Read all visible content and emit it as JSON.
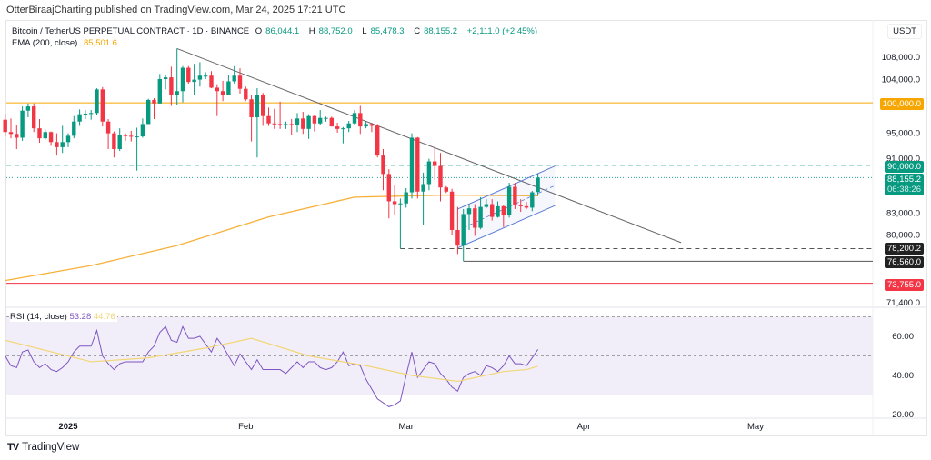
{
  "header": {
    "published": "OtterBiraajCharting published on TradingView.com, Mar 24, 2025 17:21 UTC",
    "symbol": "Bitcoin / TetherUS PERPETUAL CONTRACT · 1D · BINANCE",
    "open_label": "O",
    "open": "86,044.1",
    "high_label": "H",
    "high": "88,752.0",
    "low_label": "L",
    "low": "85,478.3",
    "close_label": "C",
    "close": "88,155.2",
    "change": "+2,111.0 (+2.45%)",
    "ema_label": "EMA (200, close)",
    "ema_value": "85,501.6"
  },
  "currency": "USDT",
  "colors": {
    "up": "#089981",
    "down": "#f23645",
    "ema": "#f7b13a",
    "rsi": "#7e57c2",
    "rsi_ma": "#f2d675",
    "channel": "#5b7bd5",
    "trendline": "#666666",
    "level_100k": "#f7a600",
    "level_73k": "#f23645"
  },
  "price_labels": {
    "l100k": "100,000.0",
    "l90k": "90,000.0",
    "last": "88,155.2",
    "countdown": "06:38:26",
    "l78k": "78,200.2",
    "l76k": "76,560.0",
    "l73k": "73,755.0"
  },
  "rsi_legend": {
    "label": "RSI (14, close)",
    "value": "53.28",
    "ma_value": "44.76"
  },
  "footer": {
    "logo": "TV",
    "brand": "TradingView"
  },
  "chart_data": [
    {
      "type": "candlestick",
      "scale": "log",
      "ylim": [
        71400,
        110000
      ],
      "y_ticks": [
        "108,000.0",
        "104,000.0",
        "95,000.0",
        "91,000.0",
        "83,000.0",
        "80,000.0",
        "71,400.0"
      ],
      "y_tick_values": [
        108000,
        104000,
        95000,
        91000,
        83000,
        80000,
        71400
      ],
      "x_ticks": [
        {
          "label": "2025",
          "date": "2025-01-01"
        },
        {
          "label": "Feb",
          "date": "2025-02-01"
        },
        {
          "label": "Mar",
          "date": "2025-03-01"
        },
        {
          "label": "Apr",
          "date": "2025-04-01"
        },
        {
          "label": "May",
          "date": "2025-05-01"
        }
      ],
      "start_date": "2024-12-21",
      "ohlc_columns": [
        "open",
        "high",
        "low",
        "close"
      ],
      "ohlc": [
        [
          97200,
          98200,
          94500,
          95200
        ],
        [
          95200,
          97400,
          94200,
          94900
        ],
        [
          94900,
          96400,
          92500,
          94300
        ],
        [
          94300,
          99400,
          93800,
          98700
        ],
        [
          98700,
          99900,
          97600,
          99400
        ],
        [
          99400,
          99900,
          95200,
          95800
        ],
        [
          95800,
          97300,
          93500,
          94200
        ],
        [
          94200,
          95600,
          94000,
          95200
        ],
        [
          95200,
          95300,
          93000,
          93600
        ],
        [
          93600,
          95000,
          91500,
          92800
        ],
        [
          92800,
          96200,
          91900,
          93600
        ],
        [
          93600,
          95000,
          92800,
          94600
        ],
        [
          94600,
          97800,
          94200,
          96900
        ],
        [
          96900,
          98900,
          96200,
          98100
        ],
        [
          98100,
          98800,
          97300,
          98200
        ],
        [
          98200,
          98800,
          97200,
          98300
        ],
        [
          98300,
          102500,
          97900,
          102300
        ],
        [
          102300,
          102700,
          96100,
          96900
        ],
        [
          96900,
          97300,
          92500,
          95000
        ],
        [
          95000,
          95300,
          91200,
          92500
        ],
        [
          92500,
          95800,
          92200,
          94700
        ],
        [
          94700,
          95000,
          93800,
          94600
        ],
        [
          94600,
          95400,
          93700,
          94500
        ],
        [
          94500,
          95900,
          89200,
          94500
        ],
        [
          94500,
          97400,
          94300,
          96500
        ],
        [
          96500,
          100700,
          96500,
          100500
        ],
        [
          100500,
          100800,
          97300,
          99900
        ],
        [
          99900,
          105000,
          99900,
          104100
        ],
        [
          104100,
          104900,
          102300,
          104400
        ],
        [
          104400,
          106300,
          99500,
          101300
        ],
        [
          101300,
          109600,
          99600,
          102000
        ],
        [
          102000,
          106400,
          100100,
          106100
        ],
        [
          106100,
          106400,
          103300,
          103600
        ],
        [
          103600,
          106800,
          101300,
          104000
        ],
        [
          104000,
          107100,
          102800,
          104700
        ],
        [
          104700,
          105300,
          104100,
          104700
        ],
        [
          104700,
          105500,
          102500,
          102600
        ],
        [
          102600,
          103200,
          97800,
          102000
        ],
        [
          102000,
          103800,
          100300,
          101300
        ],
        [
          101300,
          104800,
          101300,
          103700
        ],
        [
          103700,
          106400,
          103300,
          104700
        ],
        [
          104700,
          106000,
          101600,
          102400
        ],
        [
          102400,
          102800,
          100300,
          100600
        ],
        [
          100600,
          101400,
          93700,
          97600
        ],
        [
          97600,
          102500,
          91200,
          101300
        ],
        [
          101300,
          101700,
          96200,
          97800
        ],
        [
          97800,
          99200,
          96200,
          96600
        ],
        [
          96600,
          99000,
          95700,
          96500
        ],
        [
          96500,
          100200,
          95700,
          96400
        ],
        [
          96400,
          96900,
          95700,
          96500
        ],
        [
          96500,
          97300,
          94700,
          96400
        ],
        [
          96400,
          98300,
          95200,
          97400
        ],
        [
          97400,
          98500,
          94900,
          95700
        ],
        [
          95700,
          98100,
          94100,
          97800
        ],
        [
          97800,
          98000,
          95300,
          96600
        ],
        [
          96600,
          98800,
          96300,
          97500
        ],
        [
          97500,
          97700,
          96900,
          97500
        ],
        [
          97500,
          97700,
          96100,
          96100
        ],
        [
          96100,
          96700,
          95100,
          95700
        ],
        [
          95700,
          96000,
          93400,
          95800
        ],
        [
          95800,
          97000,
          95200,
          96600
        ],
        [
          96600,
          98800,
          96400,
          98300
        ],
        [
          98300,
          99500,
          94900,
          96100
        ],
        [
          96100,
          96900,
          95800,
          96500
        ],
        [
          96500,
          96700,
          95200,
          96200
        ],
        [
          96200,
          96500,
          91200,
          91500
        ],
        [
          91500,
          92500,
          86300,
          88700
        ],
        [
          88700,
          89400,
          82300,
          84700
        ],
        [
          84700,
          87000,
          82800,
          84300
        ],
        [
          84300,
          85100,
          78200,
          84400
        ],
        [
          84400,
          86600,
          83800,
          86000
        ],
        [
          86000,
          95000,
          85100,
          94300
        ],
        [
          94300,
          94400,
          85100,
          86100
        ],
        [
          86100,
          88900,
          81400,
          87200
        ],
        [
          87200,
          91000,
          86300,
          90600
        ],
        [
          90600,
          92800,
          87800,
          89900
        ],
        [
          89900,
          91900,
          84700,
          86700
        ],
        [
          86700,
          86900,
          85900,
          86100
        ],
        [
          86100,
          86500,
          80000,
          80700
        ],
        [
          80700,
          83900,
          77500,
          78600
        ],
        [
          78600,
          83600,
          76560,
          82900
        ],
        [
          82900,
          84300,
          80700,
          83700
        ],
        [
          83700,
          84300,
          79900,
          81000
        ],
        [
          81000,
          85300,
          80800,
          83900
        ],
        [
          83900,
          85000,
          83700,
          84300
        ],
        [
          84300,
          85000,
          82000,
          82500
        ],
        [
          82500,
          84700,
          82400,
          84000
        ],
        [
          84000,
          84100,
          81100,
          82700
        ],
        [
          82700,
          87400,
          82400,
          86800
        ],
        [
          86800,
          87400,
          83600,
          84200
        ],
        [
          84200,
          85000,
          83200,
          84000
        ],
        [
          84000,
          84600,
          83600,
          83800
        ],
        [
          83800,
          86200,
          83300,
          86000
        ],
        [
          86044.1,
          88752.0,
          85478.3,
          88155.2
        ]
      ],
      "ema200": {
        "label": "EMA (200, close)",
        "points": [
          [
            "2024-12-21",
            74100
          ],
          [
            "2025-01-05",
            76000
          ],
          [
            "2025-01-20",
            78600
          ],
          [
            "2025-02-05",
            82500
          ],
          [
            "2025-02-20",
            85300
          ],
          [
            "2025-03-08",
            85600
          ],
          [
            "2025-03-24",
            85501.6
          ]
        ]
      },
      "levels": [
        {
          "price": 100000,
          "style": "solid",
          "color": "#f7a600",
          "from": "2024-12-21"
        },
        {
          "price": 90000,
          "style": "dashed",
          "color": "#26a69a",
          "from": "2024-12-21"
        },
        {
          "price": 88155.2,
          "style": "dotted",
          "color": "#26a69a",
          "from": "2024-12-21"
        },
        {
          "price": 78200.2,
          "style": "dashed",
          "color": "#555555",
          "from": "2025-02-28"
        },
        {
          "price": 76560,
          "style": "solid",
          "color": "#555555",
          "from": "2025-03-11"
        },
        {
          "price": 73755,
          "style": "solid",
          "color": "#f23645",
          "from": "2024-12-21"
        }
      ],
      "trendline": [
        [
          "2025-01-20",
          109600
        ],
        [
          "2025-04-18",
          79000
        ]
      ],
      "channel": {
        "upper": [
          [
            "2025-03-10",
            83600
          ],
          [
            "2025-03-27",
            89900
          ]
        ],
        "middle": [
          [
            "2025-03-11",
            81000
          ],
          [
            "2025-03-27",
            87000
          ]
        ],
        "lower": [
          [
            "2025-03-10",
            78300
          ],
          [
            "2025-03-27",
            84100
          ]
        ]
      }
    },
    {
      "type": "line",
      "title": "RSI (14, close)",
      "ylim": [
        17,
        75
      ],
      "y_ticks": [
        "60.00",
        "40.00",
        "20.00"
      ],
      "y_tick_values": [
        60,
        40,
        20
      ],
      "bands": [
        70,
        50,
        30
      ],
      "start_date": "2024-12-21",
      "rsi": [
        50,
        45,
        44,
        52,
        53,
        47,
        44,
        46,
        43,
        42,
        44,
        47,
        52,
        55,
        55,
        55,
        63,
        50,
        46,
        43,
        46,
        47,
        47,
        47,
        47,
        52,
        55,
        62,
        65,
        58,
        57,
        65,
        59,
        59,
        60,
        56,
        52,
        59,
        55,
        50,
        45,
        51,
        47,
        43,
        48,
        43,
        43,
        43,
        43,
        41,
        44,
        47,
        44,
        47,
        47,
        44,
        43,
        44,
        47,
        52,
        45,
        46,
        45,
        38,
        33,
        28,
        26,
        24,
        25,
        27,
        40,
        52,
        39,
        43,
        47,
        46,
        41,
        38,
        34,
        32,
        39,
        41,
        42,
        40,
        45,
        44,
        42,
        45,
        50,
        46,
        46,
        45,
        49,
        53.28
      ],
      "rsi_ma": [
        [
          "2024-12-21",
          58
        ],
        [
          "2025-01-05",
          47
        ],
        [
          "2025-01-15",
          49
        ],
        [
          "2025-01-25",
          54
        ],
        [
          "2025-02-02",
          59
        ],
        [
          "2025-02-12",
          50
        ],
        [
          "2025-02-22",
          45
        ],
        [
          "2025-03-02",
          40
        ],
        [
          "2025-03-10",
          37
        ],
        [
          "2025-03-18",
          42
        ],
        [
          "2025-03-22",
          43
        ],
        [
          "2025-03-24",
          44.76
        ]
      ]
    }
  ]
}
